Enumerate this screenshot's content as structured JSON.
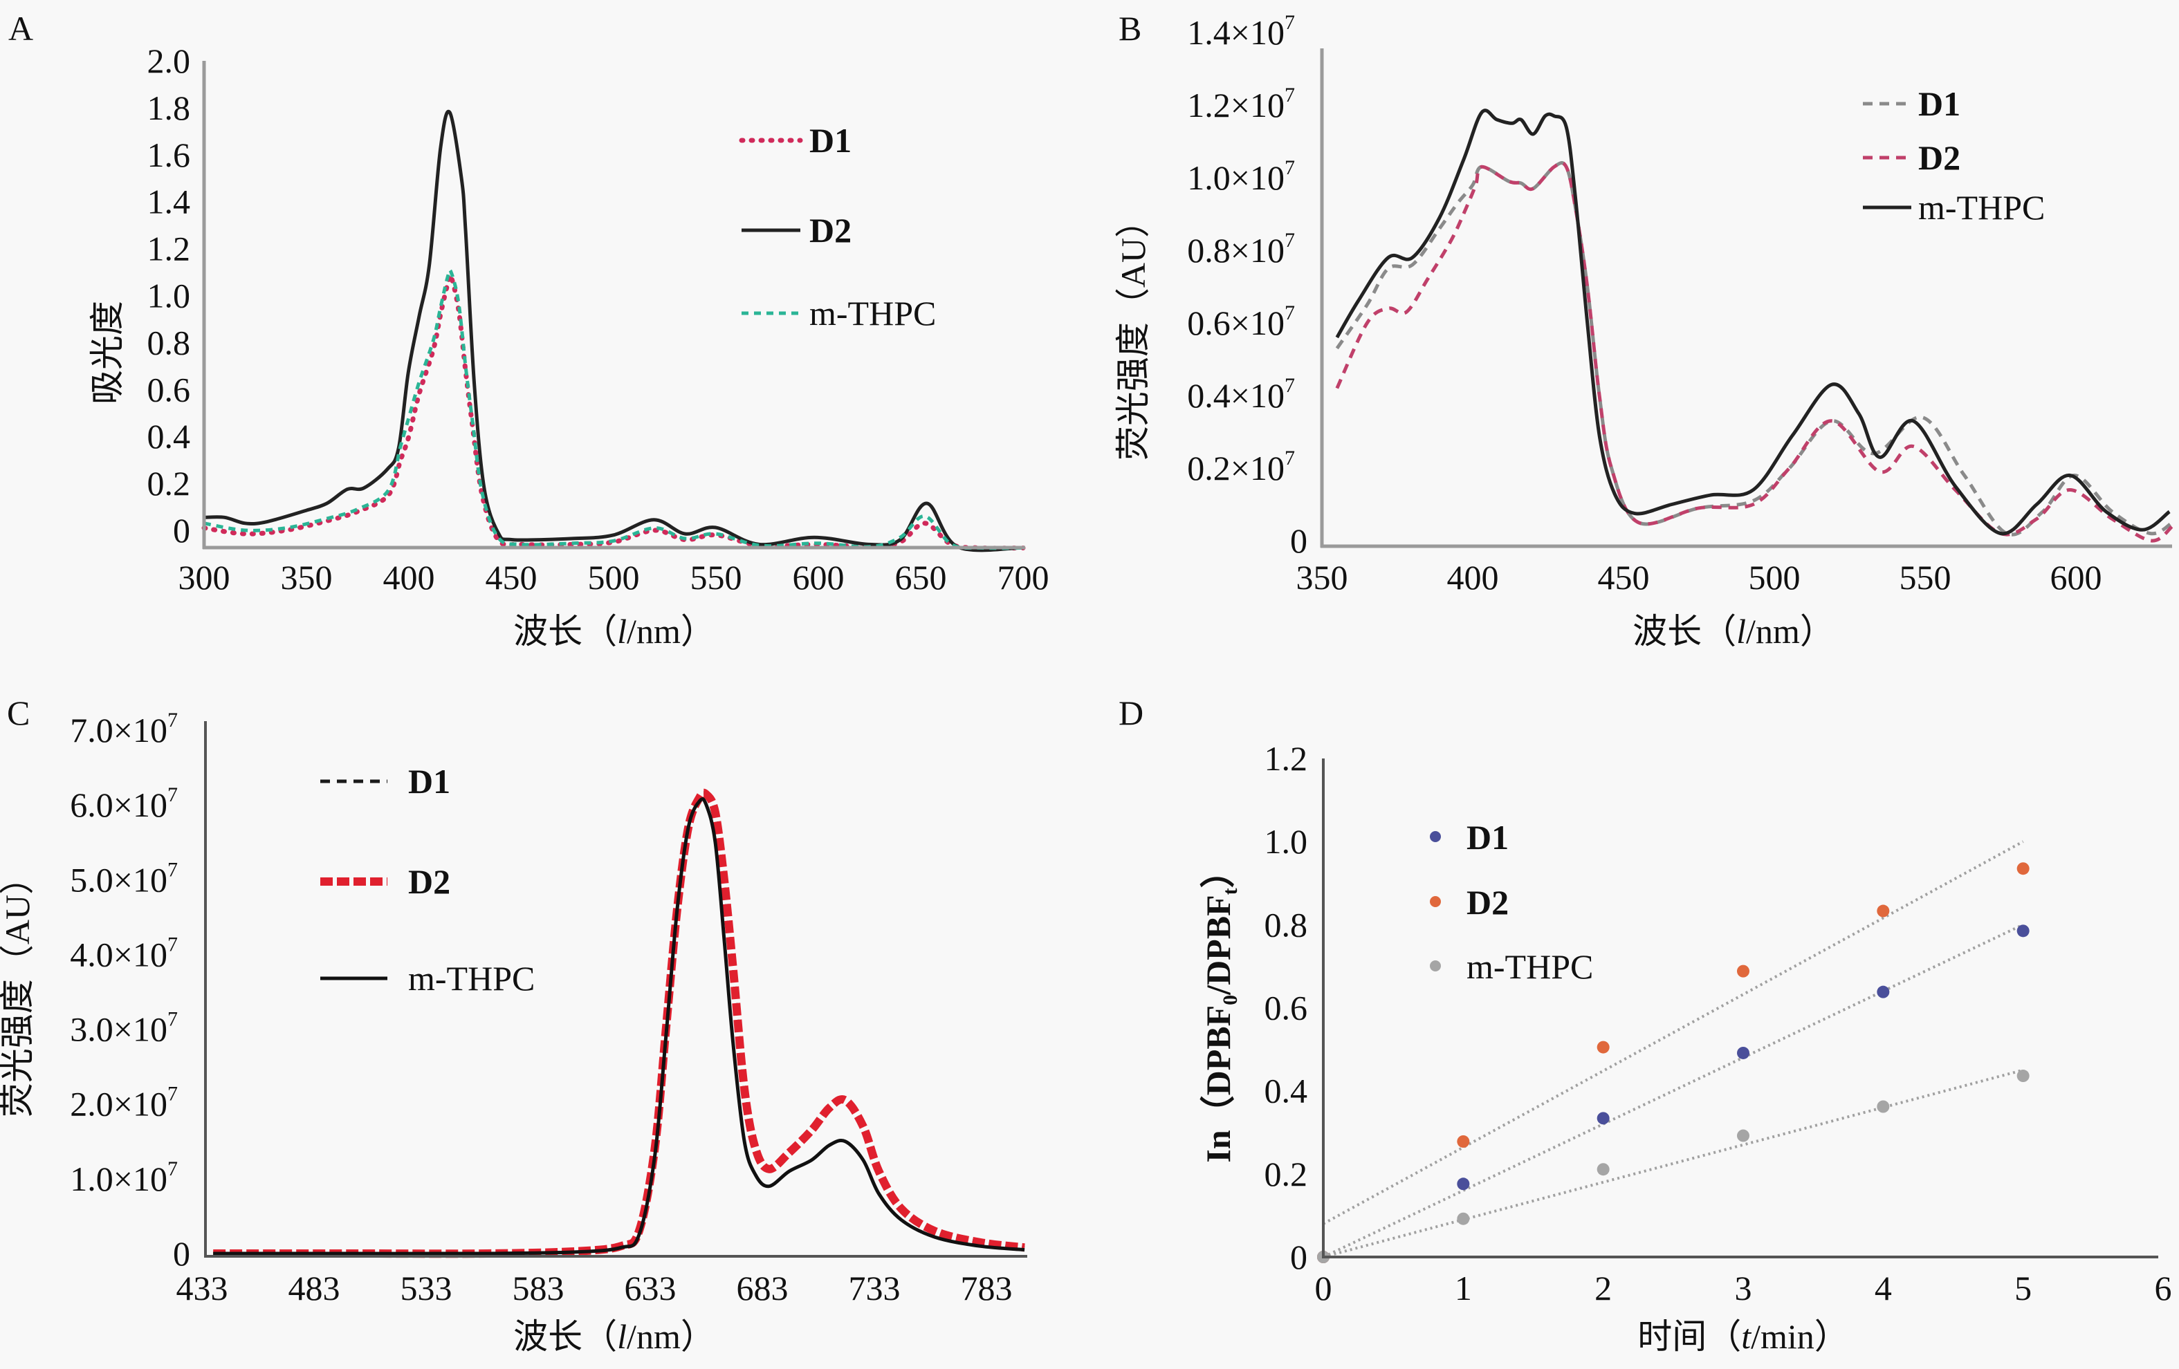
{
  "figure": {
    "panels": [
      "A",
      "B",
      "C",
      "D"
    ]
  },
  "chart_data": [
    {
      "panel": "A",
      "type": "line",
      "title": "",
      "xlabel_prefix": "波长（",
      "xlabel_var": "l",
      "xlabel_suffix": "/nm）",
      "ylabel": "吸光度",
      "xlim": [
        300,
        700
      ],
      "ylim": [
        0,
        2.0
      ],
      "xticks": [
        "300",
        "350",
        "400",
        "450",
        "500",
        "550",
        "600",
        "650",
        "700"
      ],
      "yticks": [
        "0",
        "0.2",
        "0.4",
        "0.6",
        "0.8",
        "1.0",
        "1.2",
        "1.4",
        "1.6",
        "1.8",
        "2.0"
      ],
      "legend_position": "top-right",
      "series": [
        {
          "name": "D1",
          "bold": true,
          "color": "#d02a5a",
          "style": "dotted",
          "x": [
            300,
            320,
            340,
            360,
            375,
            390,
            396,
            400,
            405,
            412,
            415.5,
            419,
            420.6,
            424.3,
            427.7,
            431,
            435.8,
            443.6,
            455,
            480,
            500,
            520,
            535,
            550,
            572,
            600,
            625,
            640,
            652,
            665,
            680,
            700
          ],
          "y": [
            0.01,
            -0.015,
            0.0,
            0.04,
            0.08,
            0.15,
            0.3,
            0.4,
            0.58,
            0.77,
            0.92,
            1.05,
            1.08,
            0.94,
            0.68,
            0.45,
            0.15,
            -0.04,
            -0.06,
            -0.06,
            -0.05,
            0.0,
            -0.04,
            -0.02,
            -0.065,
            -0.06,
            -0.07,
            -0.05,
            0.03,
            -0.06,
            -0.075,
            -0.075
          ]
        },
        {
          "name": "D2",
          "bold": true,
          "color": "#222222",
          "style": "solid",
          "x": [
            300,
            310,
            320,
            330,
            350,
            360,
            370,
            378,
            389.5,
            395,
            399.7,
            405,
            410,
            415.5,
            420,
            425.7,
            427.7,
            432,
            436.8,
            443.6,
            450.7,
            480,
            500,
            519.6,
            535,
            549.7,
            571,
            598,
            624.7,
            640,
            653,
            668,
            700
          ],
          "y": [
            0.055,
            0.055,
            0.03,
            0.035,
            0.085,
            0.115,
            0.175,
            0.18,
            0.26,
            0.35,
            0.67,
            0.91,
            1.13,
            1.63,
            1.78,
            1.5,
            1.28,
            0.62,
            0.18,
            -0.01,
            -0.04,
            -0.035,
            -0.02,
            0.045,
            -0.015,
            0.012,
            -0.06,
            -0.03,
            -0.06,
            -0.04,
            0.115,
            -0.07,
            -0.074
          ]
        },
        {
          "name": "m-THPC",
          "bold": false,
          "color": "#2bb596",
          "style": "dashed",
          "x": [
            300,
            320,
            340,
            360,
            375,
            390,
            396,
            400,
            405,
            412,
            415.5,
            419,
            420.6,
            424.3,
            427.7,
            431,
            435.8,
            443.6,
            455,
            480,
            500,
            520,
            535,
            550,
            572,
            600,
            625,
            640,
            652,
            665,
            680,
            700
          ],
          "y": [
            0.03,
            0.0,
            0.01,
            0.05,
            0.09,
            0.17,
            0.36,
            0.48,
            0.63,
            0.81,
            0.95,
            1.08,
            1.1,
            0.97,
            0.7,
            0.47,
            0.16,
            -0.03,
            -0.06,
            -0.055,
            -0.045,
            0.01,
            -0.035,
            -0.015,
            -0.065,
            -0.055,
            -0.07,
            -0.03,
            0.06,
            -0.06,
            -0.075,
            -0.075
          ]
        }
      ]
    },
    {
      "panel": "B",
      "type": "line",
      "title": "",
      "xlabel_prefix": "波长（",
      "xlabel_var": "l",
      "xlabel_suffix": "/nm）",
      "ylabel": "荧光强度（AU）",
      "xlim": [
        350,
        632
      ],
      "ylim": [
        0,
        14000000
      ],
      "xticks": [
        "350",
        "400",
        "450",
        "500",
        "550",
        "600"
      ],
      "yticks": [
        "0",
        "0.2×10",
        "0.4×10",
        "0.6×10",
        "0.8×10",
        "1.0×10",
        "1.2×10",
        "1.4×10"
      ],
      "ytick_exponent": "7",
      "legend_position": "top-right",
      "series": [
        {
          "name": "D1",
          "bold": true,
          "color": "#8a8a8a",
          "style": "dashed",
          "x": [
            355,
            365,
            372,
            380,
            389,
            395,
            400,
            403,
            412,
            416,
            420,
            427,
            431,
            434,
            438,
            442,
            446,
            455,
            475,
            493,
            505,
            519,
            533,
            549,
            563,
            577,
            589,
            599.5,
            612,
            624.6,
            632
          ],
          "y": [
            5300000,
            6500000,
            7500000,
            7600000,
            8600000,
            9300000,
            9800000,
            10300000,
            9900000,
            9850000,
            9700000,
            10300000,
            10300000,
            9200000,
            7000000,
            4000000,
            2000000,
            500000,
            900000,
            1100000,
            2000000,
            3300000,
            2400000,
            3400000,
            1800000,
            200000,
            800000,
            1800000,
            800000,
            200000,
            500000
          ]
        },
        {
          "name": "D2",
          "bold": true,
          "color": "#c0406a",
          "style": "dashed",
          "x": [
            355,
            365,
            372,
            378,
            385,
            393,
            398,
            401,
            403,
            412,
            416,
            420,
            427,
            431,
            434,
            438,
            442,
            446,
            455,
            475,
            493,
            505,
            519,
            535,
            546,
            560,
            575,
            587,
            598,
            612,
            625,
            632
          ],
          "y": [
            4200000,
            6000000,
            6400000,
            6300000,
            7200000,
            8300000,
            9200000,
            9800000,
            10300000,
            9900000,
            9850000,
            9700000,
            10300000,
            10300000,
            9200000,
            7000000,
            4000000,
            2000000,
            500000,
            900000,
            1000000,
            2000000,
            3300000,
            1900000,
            2600000,
            1400000,
            200000,
            600000,
            1400000,
            600000,
            0,
            400000
          ]
        },
        {
          "name": "m-THPC",
          "bold": false,
          "color": "#222222",
          "style": "solid",
          "x": [
            355,
            362,
            372,
            380,
            389,
            397,
            403,
            408,
            413,
            416,
            420,
            424,
            427,
            431,
            434,
            438,
            442,
            447,
            453.7,
            466,
            479,
            493,
            506,
            519,
            528,
            535,
            546,
            560,
            575,
            587,
            598,
            610,
            622,
            631
          ],
          "y": [
            5600000,
            6600000,
            7800000,
            7800000,
            8900000,
            10500000,
            11800000,
            11600000,
            11500000,
            11600000,
            11200000,
            11700000,
            11700000,
            11400000,
            9500000,
            6000000,
            2900000,
            1300000,
            750000,
            1000000,
            1260000,
            1400000,
            2900000,
            4300000,
            3500000,
            2300000,
            3300000,
            1500000,
            200000,
            1000000,
            1800000,
            800000,
            300000,
            800000
          ]
        }
      ]
    },
    {
      "panel": "C",
      "type": "line",
      "title": "",
      "xlabel_prefix": "波长（",
      "xlabel_var": "l",
      "xlabel_suffix": "/nm）",
      "ylabel": "荧光强度（AU）",
      "xlim": [
        433,
        800
      ],
      "ylim": [
        0,
        70000000
      ],
      "xticks": [
        "433",
        "483",
        "533",
        "583",
        "633",
        "683",
        "733",
        "783"
      ],
      "yticks": [
        "0",
        "1.0×10",
        "2.0×10",
        "3.0×10",
        "4.0×10",
        "5.0×10",
        "6.0×10",
        "7.0×10"
      ],
      "ytick_exponent": "7",
      "legend_position": "top-left",
      "series": [
        {
          "name": "D1",
          "bold": true,
          "color": "#1a1a1a",
          "style": "dashed",
          "x": [
            438,
            500,
            560,
            600,
            620,
            628,
            635,
            640,
            645,
            650,
            655,
            658,
            662,
            666,
            670,
            675,
            680,
            686,
            695,
            705,
            713,
            720,
            728,
            735,
            745,
            760,
            780,
            800
          ],
          "y": [
            0,
            0,
            0,
            300000,
            1000000,
            3000000,
            14000000,
            30000000,
            46000000,
            57000000,
            61000000,
            61400000,
            59000000,
            50000000,
            38000000,
            22000000,
            14000000,
            11300000,
            13500000,
            16500000,
            19500000,
            20500000,
            17000000,
            11000000,
            6000000,
            3000000,
            1500000,
            800000
          ]
        },
        {
          "name": "D2",
          "bold": true,
          "color": "#e0202e",
          "style": "thick-dashed",
          "x": [
            438,
            500,
            560,
            600,
            620,
            628,
            635,
            640,
            645,
            650,
            655,
            658,
            662,
            666,
            670,
            675,
            680,
            686,
            695,
            705,
            713,
            720,
            728,
            735,
            745,
            760,
            780,
            800
          ],
          "y": [
            0,
            0,
            0,
            300000,
            1000000,
            3000000,
            14000000,
            30000000,
            46000000,
            57000000,
            61000000,
            61400000,
            59000000,
            50000000,
            38000000,
            22000000,
            14000000,
            11300000,
            13500000,
            16500000,
            19500000,
            20500000,
            17000000,
            11000000,
            6000000,
            3000000,
            1500000,
            800000
          ]
        },
        {
          "name": "m-THPC",
          "bold": false,
          "color": "#111111",
          "style": "solid",
          "x": [
            438,
            500,
            560,
            600,
            620,
            628,
            635,
            640,
            645,
            650,
            655,
            658,
            662,
            666,
            670,
            675,
            680,
            686,
            695,
            705,
            713,
            720,
            728,
            735,
            745,
            760,
            780,
            800
          ],
          "y": [
            0,
            0,
            0,
            200000,
            800000,
            2500000,
            13000000,
            29000000,
            46000000,
            57000000,
            60500000,
            60000000,
            55000000,
            42000000,
            28000000,
            15000000,
            10500000,
            9000000,
            11000000,
            12500000,
            14500000,
            15000000,
            12500000,
            8000000,
            4500000,
            2200000,
            1000000,
            500000
          ]
        }
      ]
    },
    {
      "panel": "D",
      "type": "scatter",
      "title": "",
      "xlabel_prefix": "时间（",
      "xlabel_var": "t",
      "xlabel_suffix": "/min）",
      "ylabel_prefix": "In（DPBF",
      "ylabel_sub1": "0",
      "ylabel_mid": "/DPBF",
      "ylabel_sub2": "t",
      "ylabel_suffix": "）",
      "xlim": [
        0,
        6
      ],
      "ylim": [
        0,
        1.2
      ],
      "xticks": [
        "0",
        "1",
        "2",
        "3",
        "4",
        "5",
        "6"
      ],
      "yticks": [
        "0",
        "0.2",
        "0.4",
        "0.6",
        "0.8",
        "1.0",
        "1.2"
      ],
      "legend_position": "top-left",
      "series": [
        {
          "name": "D1",
          "bold": true,
          "color": "#4a4f9a",
          "x": [
            0,
            1,
            2,
            3,
            4,
            5
          ],
          "y": [
            0,
            0.176,
            0.334,
            0.491,
            0.638,
            0.785
          ],
          "trendline": {
            "x": [
              0,
              5
            ],
            "y": [
              0.0,
              0.8
            ]
          }
        },
        {
          "name": "D2",
          "bold": true,
          "color": "#e0683c",
          "x": [
            0,
            1,
            2,
            3,
            4,
            5
          ],
          "y": [
            0,
            0.278,
            0.505,
            0.688,
            0.833,
            0.935
          ],
          "trendline": {
            "x": [
              0,
              5
            ],
            "y": [
              0.08,
              1.0
            ]
          }
        },
        {
          "name": "m-THPC",
          "bold": false,
          "color": "#a5a5a5",
          "x": [
            0,
            1,
            2,
            3,
            4,
            5
          ],
          "y": [
            0,
            0.092,
            0.211,
            0.292,
            0.362,
            0.436
          ],
          "trendline": {
            "x": [
              0,
              5
            ],
            "y": [
              0.0,
              0.45
            ]
          }
        }
      ]
    }
  ]
}
